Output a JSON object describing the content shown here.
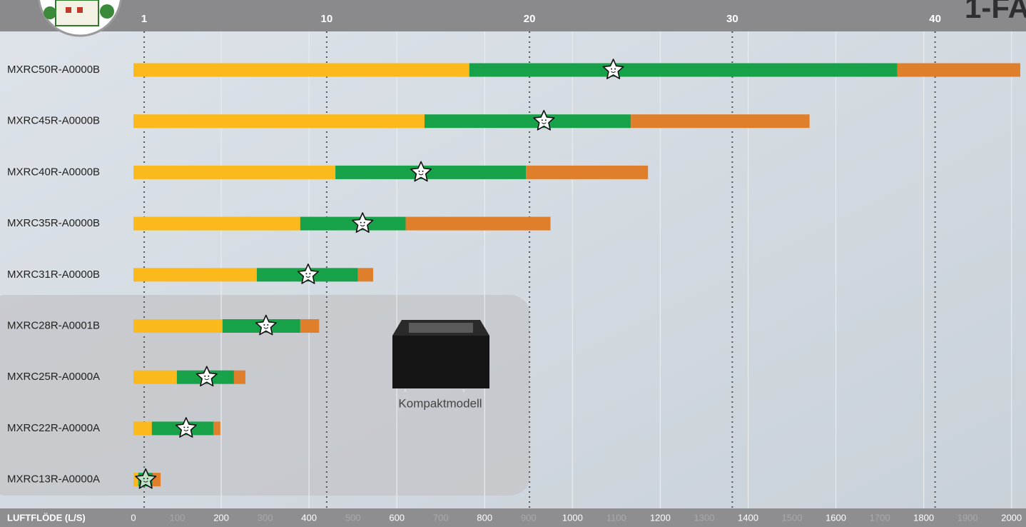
{
  "chart_data": {
    "type": "stacked-bar-horizontal",
    "title": "1-FA",
    "xlabel": "LUFTFLÖDE (L/S)",
    "annotations": [
      "Kompaktmodell"
    ],
    "categories": [
      "MXRC50R-A0000B",
      "MXRC45R-A0000B",
      "MXRC40R-A0000B",
      "MXRC35R-A0000B",
      "MXRC31R-A0000B",
      "MXRC28R-A0001B",
      "MXRC25R-A0000A",
      "MXRC22R-A0000A",
      "MXRC13R-A0000A"
    ],
    "series": [
      {
        "color": "#fbb91c",
        "values": [
          765,
          663,
          460,
          380,
          281,
          203,
          99,
          42,
          11
        ]
      },
      {
        "color": "#17a24a",
        "values": [
          975,
          470,
          434,
          240,
          230,
          177,
          130,
          140,
          33
        ]
      },
      {
        "color": "#e07f2b",
        "values": [
          280,
          407,
          278,
          330,
          35,
          43,
          26,
          16,
          18
        ]
      }
    ],
    "optimal_values": [
      1093,
      935,
      655,
      522,
      398,
      302,
      167,
      120,
      28
    ],
    "xlim": [
      0,
      2020
    ],
    "xticks": [
      0,
      100,
      200,
      300,
      400,
      500,
      600,
      700,
      800,
      900,
      1000,
      1100,
      1200,
      1300,
      1400,
      1500,
      1600,
      1700,
      1800,
      1900,
      2000
    ],
    "x2lim": [
      0.47,
      44.2
    ],
    "x2ticks": [
      1,
      10,
      20,
      30,
      40
    ],
    "grid": true
  }
}
